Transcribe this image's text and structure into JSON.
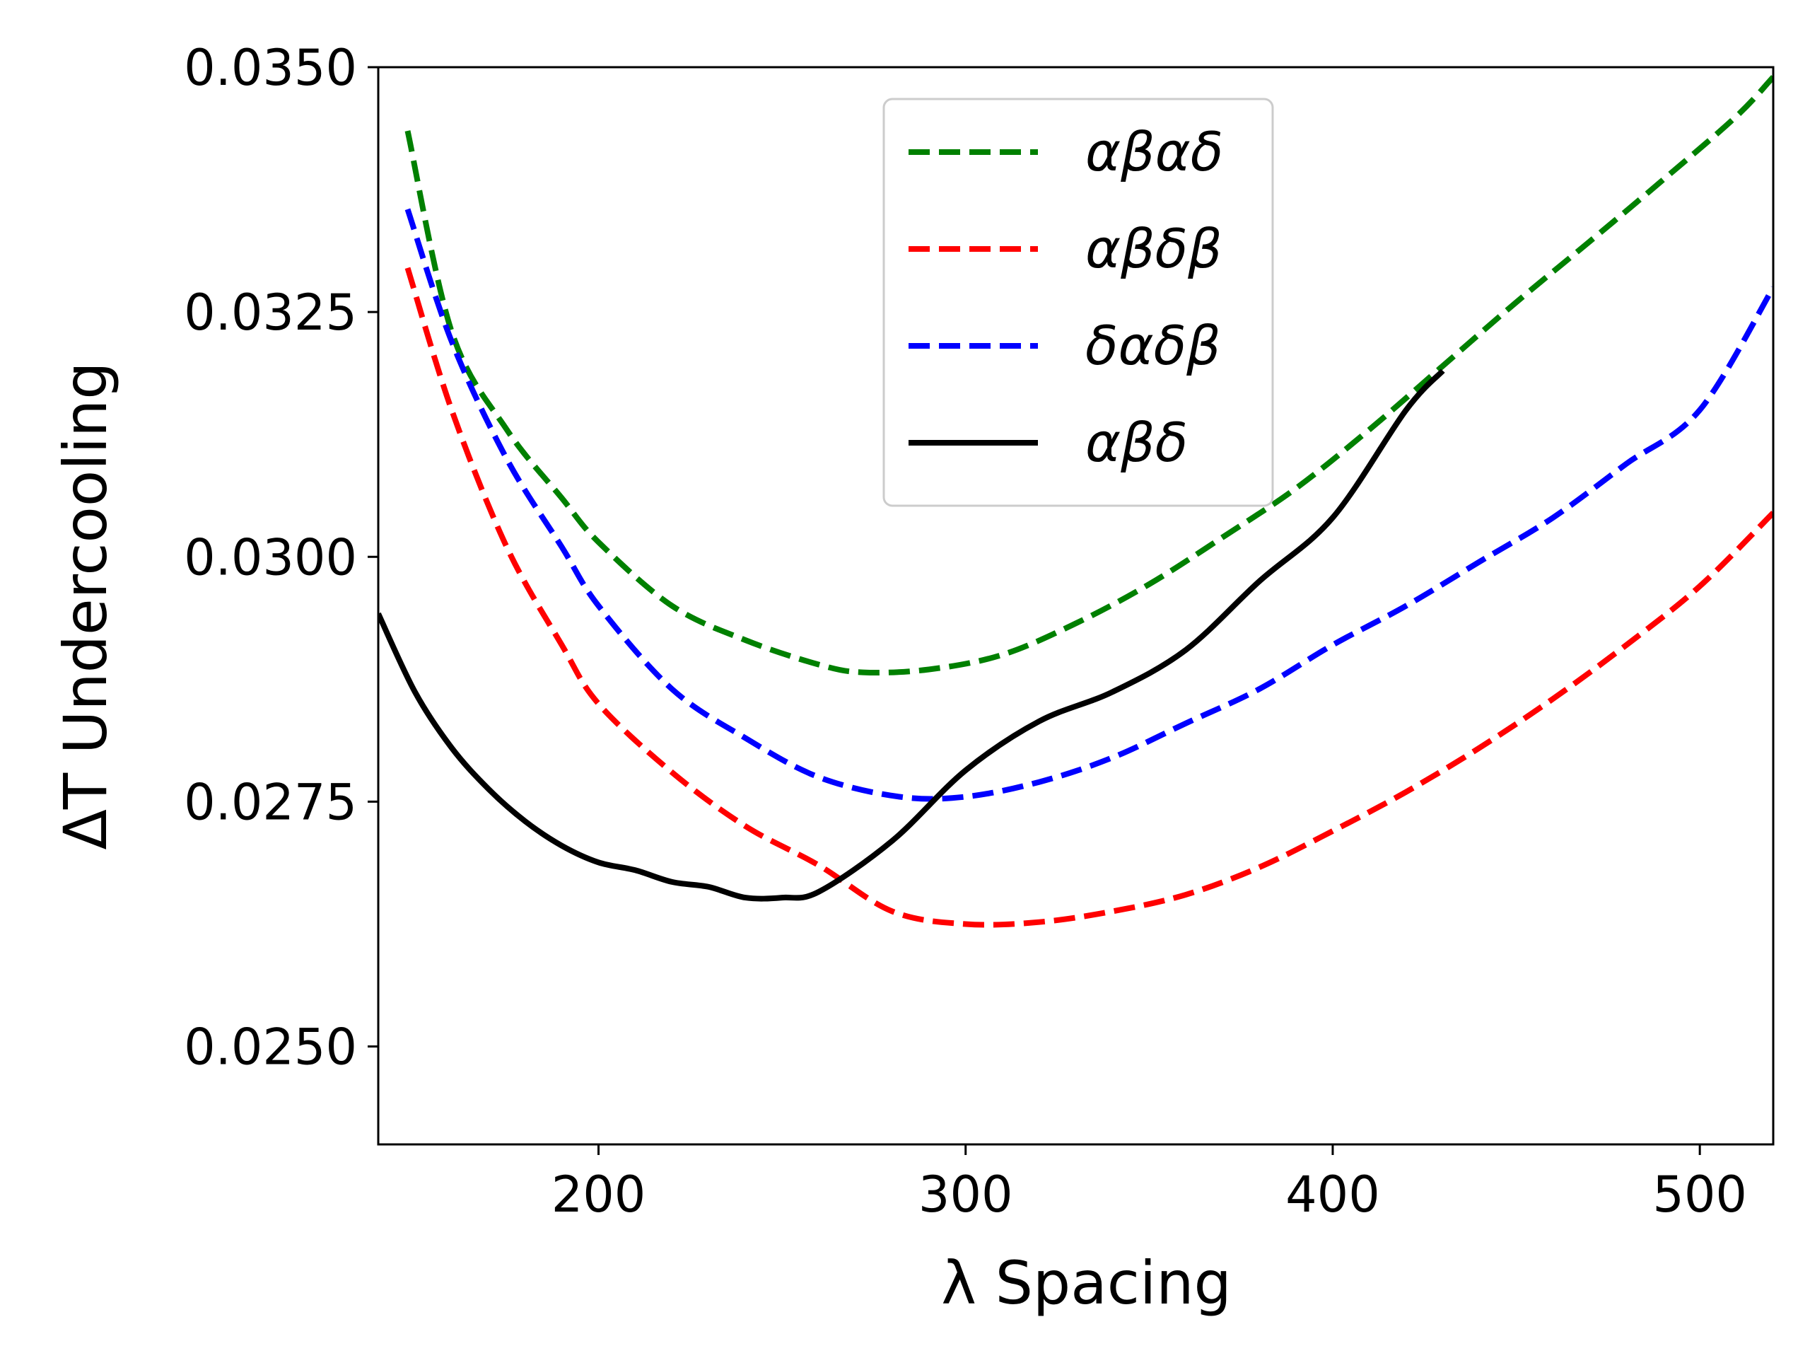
{
  "chart_data": {
    "type": "line",
    "title": "",
    "xlabel": "λ Spacing",
    "ylabel": "ΔT Undercooling",
    "xlim": [
      140,
      520
    ],
    "ylim": [
      0.024,
      0.035
    ],
    "xticks": [
      200,
      300,
      400,
      500
    ],
    "xtick_labels": [
      "200",
      "300",
      "400",
      "500"
    ],
    "yticks": [
      0.025,
      0.0275,
      0.03,
      0.0325,
      0.035
    ],
    "ytick_labels": [
      "0.0250",
      "0.0275",
      "0.0300",
      "0.0325",
      "0.0350"
    ],
    "grid": false,
    "legend_position": "top-center",
    "series": [
      {
        "name": "αβαδ",
        "color": "#008000",
        "style": "dashed",
        "x": [
          148,
          160,
          175,
          190,
          200,
          220,
          240,
          260,
          272,
          290,
          310,
          330,
          350,
          370,
          390,
          410,
          430,
          450,
          470,
          490,
          510,
          520
        ],
        "y": [
          0.03435,
          0.0323,
          0.0313,
          0.0306,
          0.03015,
          0.0295,
          0.02915,
          0.0289,
          0.02882,
          0.02885,
          0.029,
          0.02932,
          0.02972,
          0.0302,
          0.0307,
          0.0313,
          0.03195,
          0.0326,
          0.03322,
          0.03385,
          0.0345,
          0.0349
        ]
      },
      {
        "name": "αβδβ",
        "color": "#ff0000",
        "style": "dashed",
        "x": [
          148,
          160,
          175,
          190,
          200,
          220,
          240,
          260,
          280,
          300,
          320,
          340,
          360,
          380,
          400,
          420,
          440,
          460,
          480,
          500,
          520
        ],
        "y": [
          0.03295,
          0.0315,
          0.0301,
          0.0291,
          0.0285,
          0.0278,
          0.02725,
          0.02685,
          0.02638,
          0.02625,
          0.02627,
          0.02638,
          0.02655,
          0.02683,
          0.0272,
          0.0276,
          0.02805,
          0.02855,
          0.0291,
          0.0297,
          0.03045
        ]
      },
      {
        "name": "δαδβ",
        "color": "#0000ff",
        "style": "dashed",
        "x": [
          148,
          160,
          175,
          190,
          200,
          220,
          240,
          260,
          282,
          300,
          320,
          340,
          360,
          380,
          400,
          420,
          440,
          460,
          480,
          500,
          520
        ],
        "y": [
          0.03355,
          0.0322,
          0.031,
          0.0301,
          0.0295,
          0.02865,
          0.02815,
          0.02775,
          0.02755,
          0.02755,
          0.0277,
          0.02795,
          0.0283,
          0.02865,
          0.0291,
          0.0295,
          0.02995,
          0.0304,
          0.03095,
          0.0315,
          0.03275
        ]
      },
      {
        "name": "αβδ",
        "color": "#000000",
        "style": "solid",
        "x": [
          140,
          150,
          160,
          170,
          180,
          190,
          200,
          210,
          220,
          230,
          240,
          250,
          260,
          280,
          300,
          320,
          340,
          360,
          380,
          400,
          420,
          430
        ],
        "y": [
          0.02942,
          0.02862,
          0.02805,
          0.02763,
          0.0273,
          0.02705,
          0.02688,
          0.0268,
          0.02668,
          0.02663,
          0.02652,
          0.02652,
          0.02658,
          0.0271,
          0.02782,
          0.02832,
          0.02862,
          0.02905,
          0.02975,
          0.0304,
          0.0315,
          0.0319
        ]
      }
    ]
  }
}
